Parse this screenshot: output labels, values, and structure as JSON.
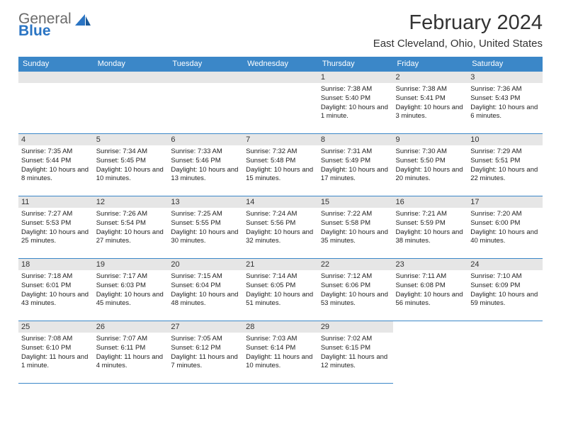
{
  "brand": {
    "line1": "General",
    "line2": "Blue"
  },
  "title": "February 2024",
  "location": "East Cleveland, Ohio, United States",
  "colors": {
    "header_bg": "#3b87c8",
    "header_text": "#ffffff",
    "daynum_bg": "#e6e6e6",
    "border": "#3b87c8",
    "logo_blue": "#2a74c3",
    "logo_gray": "#6a6a6a",
    "body_bg": "#ffffff"
  },
  "weekdays": [
    "Sunday",
    "Monday",
    "Tuesday",
    "Wednesday",
    "Thursday",
    "Friday",
    "Saturday"
  ],
  "weeks": [
    [
      {
        "empty": true
      },
      {
        "empty": true
      },
      {
        "empty": true
      },
      {
        "empty": true
      },
      {
        "day": "1",
        "sunrise": "Sunrise: 7:38 AM",
        "sunset": "Sunset: 5:40 PM",
        "daylight": "Daylight: 10 hours and 1 minute."
      },
      {
        "day": "2",
        "sunrise": "Sunrise: 7:38 AM",
        "sunset": "Sunset: 5:41 PM",
        "daylight": "Daylight: 10 hours and 3 minutes."
      },
      {
        "day": "3",
        "sunrise": "Sunrise: 7:36 AM",
        "sunset": "Sunset: 5:43 PM",
        "daylight": "Daylight: 10 hours and 6 minutes."
      }
    ],
    [
      {
        "day": "4",
        "sunrise": "Sunrise: 7:35 AM",
        "sunset": "Sunset: 5:44 PM",
        "daylight": "Daylight: 10 hours and 8 minutes."
      },
      {
        "day": "5",
        "sunrise": "Sunrise: 7:34 AM",
        "sunset": "Sunset: 5:45 PM",
        "daylight": "Daylight: 10 hours and 10 minutes."
      },
      {
        "day": "6",
        "sunrise": "Sunrise: 7:33 AM",
        "sunset": "Sunset: 5:46 PM",
        "daylight": "Daylight: 10 hours and 13 minutes."
      },
      {
        "day": "7",
        "sunrise": "Sunrise: 7:32 AM",
        "sunset": "Sunset: 5:48 PM",
        "daylight": "Daylight: 10 hours and 15 minutes."
      },
      {
        "day": "8",
        "sunrise": "Sunrise: 7:31 AM",
        "sunset": "Sunset: 5:49 PM",
        "daylight": "Daylight: 10 hours and 17 minutes."
      },
      {
        "day": "9",
        "sunrise": "Sunrise: 7:30 AM",
        "sunset": "Sunset: 5:50 PM",
        "daylight": "Daylight: 10 hours and 20 minutes."
      },
      {
        "day": "10",
        "sunrise": "Sunrise: 7:29 AM",
        "sunset": "Sunset: 5:51 PM",
        "daylight": "Daylight: 10 hours and 22 minutes."
      }
    ],
    [
      {
        "day": "11",
        "sunrise": "Sunrise: 7:27 AM",
        "sunset": "Sunset: 5:53 PM",
        "daylight": "Daylight: 10 hours and 25 minutes."
      },
      {
        "day": "12",
        "sunrise": "Sunrise: 7:26 AM",
        "sunset": "Sunset: 5:54 PM",
        "daylight": "Daylight: 10 hours and 27 minutes."
      },
      {
        "day": "13",
        "sunrise": "Sunrise: 7:25 AM",
        "sunset": "Sunset: 5:55 PM",
        "daylight": "Daylight: 10 hours and 30 minutes."
      },
      {
        "day": "14",
        "sunrise": "Sunrise: 7:24 AM",
        "sunset": "Sunset: 5:56 PM",
        "daylight": "Daylight: 10 hours and 32 minutes."
      },
      {
        "day": "15",
        "sunrise": "Sunrise: 7:22 AM",
        "sunset": "Sunset: 5:58 PM",
        "daylight": "Daylight: 10 hours and 35 minutes."
      },
      {
        "day": "16",
        "sunrise": "Sunrise: 7:21 AM",
        "sunset": "Sunset: 5:59 PM",
        "daylight": "Daylight: 10 hours and 38 minutes."
      },
      {
        "day": "17",
        "sunrise": "Sunrise: 7:20 AM",
        "sunset": "Sunset: 6:00 PM",
        "daylight": "Daylight: 10 hours and 40 minutes."
      }
    ],
    [
      {
        "day": "18",
        "sunrise": "Sunrise: 7:18 AM",
        "sunset": "Sunset: 6:01 PM",
        "daylight": "Daylight: 10 hours and 43 minutes."
      },
      {
        "day": "19",
        "sunrise": "Sunrise: 7:17 AM",
        "sunset": "Sunset: 6:03 PM",
        "daylight": "Daylight: 10 hours and 45 minutes."
      },
      {
        "day": "20",
        "sunrise": "Sunrise: 7:15 AM",
        "sunset": "Sunset: 6:04 PM",
        "daylight": "Daylight: 10 hours and 48 minutes."
      },
      {
        "day": "21",
        "sunrise": "Sunrise: 7:14 AM",
        "sunset": "Sunset: 6:05 PM",
        "daylight": "Daylight: 10 hours and 51 minutes."
      },
      {
        "day": "22",
        "sunrise": "Sunrise: 7:12 AM",
        "sunset": "Sunset: 6:06 PM",
        "daylight": "Daylight: 10 hours and 53 minutes."
      },
      {
        "day": "23",
        "sunrise": "Sunrise: 7:11 AM",
        "sunset": "Sunset: 6:08 PM",
        "daylight": "Daylight: 10 hours and 56 minutes."
      },
      {
        "day": "24",
        "sunrise": "Sunrise: 7:10 AM",
        "sunset": "Sunset: 6:09 PM",
        "daylight": "Daylight: 10 hours and 59 minutes."
      }
    ],
    [
      {
        "day": "25",
        "sunrise": "Sunrise: 7:08 AM",
        "sunset": "Sunset: 6:10 PM",
        "daylight": "Daylight: 11 hours and 1 minute."
      },
      {
        "day": "26",
        "sunrise": "Sunrise: 7:07 AM",
        "sunset": "Sunset: 6:11 PM",
        "daylight": "Daylight: 11 hours and 4 minutes."
      },
      {
        "day": "27",
        "sunrise": "Sunrise: 7:05 AM",
        "sunset": "Sunset: 6:12 PM",
        "daylight": "Daylight: 11 hours and 7 minutes."
      },
      {
        "day": "28",
        "sunrise": "Sunrise: 7:03 AM",
        "sunset": "Sunset: 6:14 PM",
        "daylight": "Daylight: 11 hours and 10 minutes."
      },
      {
        "day": "29",
        "sunrise": "Sunrise: 7:02 AM",
        "sunset": "Sunset: 6:15 PM",
        "daylight": "Daylight: 11 hours and 12 minutes."
      },
      {
        "empty": true
      },
      {
        "empty": true
      }
    ]
  ]
}
